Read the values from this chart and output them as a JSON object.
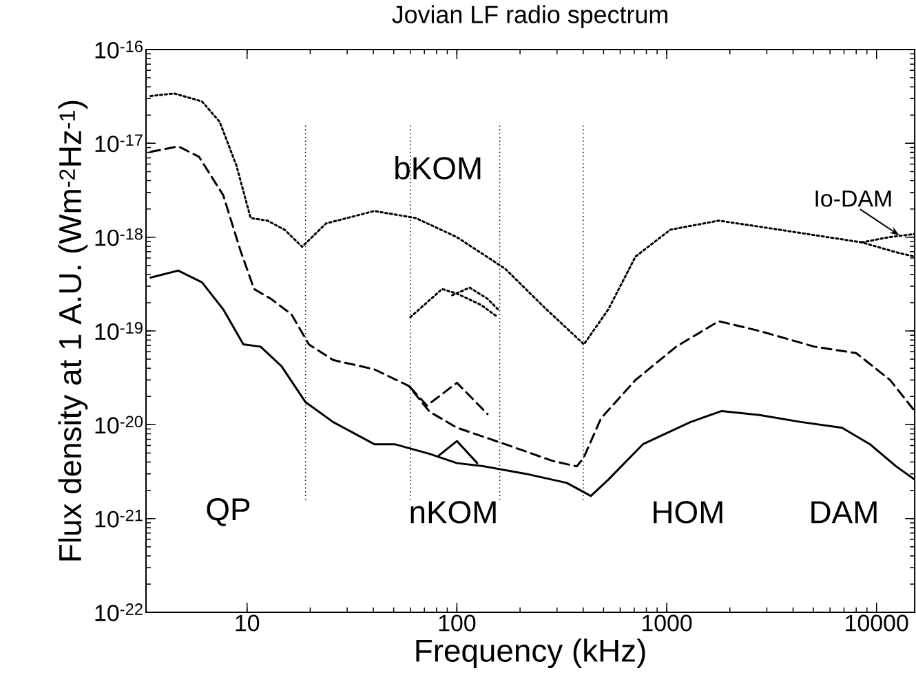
{
  "chart_data": {
    "type": "line",
    "title": "Jovian LF radio spectrum",
    "xlabel": "Frequency  (kHz)",
    "ylabel": "Flux density at 1 A.U. (Wm$^{-2}$Hz$^{-1}$)",
    "log": "xy",
    "xlim": [
      3.3,
      15200
    ],
    "ylim": [
      1e-22,
      1e-16
    ],
    "xticks": [
      10,
      100,
      1000,
      10000
    ],
    "yticks": [
      {
        "value": 1e-22,
        "label": "10$^{-22}$"
      },
      {
        "value": 1e-21,
        "label": "10$^{-21}$"
      },
      {
        "value": 1e-20,
        "label": "10$^{-20}$"
      },
      {
        "value": 1e-19,
        "label": "10$^{-19}$"
      },
      {
        "value": 1e-18,
        "label": "10$^{-18}$"
      },
      {
        "value": 1e-17,
        "label": "10$^{-17}$"
      },
      {
        "value": 1e-16,
        "label": "10$^{-16}$"
      }
    ],
    "series": [
      {
        "color": "#000000",
        "line_style": "dotted",
        "x": [
          3.47,
          4.5,
          6.1,
          7.4,
          8.9,
          10.4,
          12.5,
          15.1,
          18.3,
          23.8,
          40.4,
          63.6,
          100,
          170,
          267,
          403,
          527,
          710,
          1040,
          1770,
          3210,
          5850,
          8500,
          12400,
          15200
        ],
        "values": [
          3.2e-17,
          3.4e-17,
          2.8e-17,
          1.7e-17,
          5.8e-18,
          1.6e-18,
          1.5e-18,
          1.2e-18,
          7.9e-19,
          1.4e-18,
          1.9e-18,
          1.6e-18,
          1e-18,
          4.6e-19,
          1.7e-19,
          7.2e-20,
          1.7e-19,
          6.2e-19,
          1.2e-18,
          1.5e-18,
          1.23e-18,
          1e-18,
          8.8e-19,
          6.9e-19,
          6.2e-19
        ]
      },
      {
        "color": "#000000",
        "line_style": "dotted",
        "x": [
          8500,
          11500,
          15200
        ],
        "values": [
          8.8e-19,
          1e-18,
          1.08e-18
        ]
      },
      {
        "color": "#000000",
        "line_style": "dotted",
        "x": [
          60,
          85,
          100,
          130,
          157
        ],
        "values": [
          1.4e-19,
          2.8e-19,
          2.5e-19,
          1.9e-19,
          1.4e-19
        ]
      },
      {
        "color": "#000000",
        "line_style": "dotted",
        "x": [
          95,
          115,
          140,
          157
        ],
        "values": [
          2.4e-19,
          2.9e-19,
          2.2e-19,
          1.7e-19
        ]
      },
      {
        "color": "#000000",
        "line_style": "dashed",
        "x": [
          3.47,
          4.7,
          5.9,
          7.7,
          9.3,
          10.8,
          13.0,
          16.3,
          19.7,
          25.7,
          40.4,
          58.9,
          74,
          100,
          170,
          287,
          373,
          403,
          486,
          710,
          1110,
          1770,
          2770,
          5050,
          8000,
          11600,
          15200
        ],
        "values": [
          8.1e-18,
          9.3e-18,
          7.2e-18,
          2.8e-18,
          7.2e-19,
          2.8e-19,
          2.2e-19,
          1.5e-19,
          7.2e-20,
          4.9e-20,
          3.9e-20,
          2.6e-20,
          1.38e-20,
          9.3e-21,
          6.2e-21,
          4.1e-21,
          3.6e-21,
          4.5e-21,
          1.17e-20,
          3e-20,
          6.8e-20,
          1.27e-19,
          1e-19,
          6.8e-20,
          5.8e-20,
          3e-20,
          1.4e-20
        ]
      },
      {
        "color": "#000000",
        "line_style": "dashed",
        "x": [
          60,
          72,
          100,
          140
        ],
        "values": [
          2.5e-20,
          1.6e-20,
          2.8e-20,
          1.3e-20
        ]
      },
      {
        "color": "#000000",
        "line_style": "solid",
        "x": [
          3.47,
          4.7,
          6.1,
          7.7,
          9.6,
          11.6,
          14.6,
          19.0,
          25.7,
          40.4,
          50.5,
          74,
          100,
          135,
          213,
          334,
          435,
          527,
          770,
          1300,
          1830,
          2770,
          4360,
          6850,
          9300,
          12400,
          15200
        ],
        "values": [
          3.7e-19,
          4.4e-19,
          3.3e-19,
          1.7e-19,
          7.2e-20,
          6.8e-20,
          4.2e-20,
          1.74e-20,
          1.07e-20,
          6.2e-21,
          6.2e-21,
          4.9e-21,
          3.9e-21,
          3.6e-21,
          3e-21,
          2.4e-21,
          1.74e-21,
          2.6e-21,
          6.2e-21,
          1.07e-20,
          1.4e-20,
          1.27e-20,
          1.07e-20,
          9.3e-21,
          6.2e-21,
          3.6e-21,
          2.6e-21
        ]
      },
      {
        "color": "#000000",
        "line_style": "solid",
        "x": [
          82,
          100,
          125
        ],
        "values": [
          4.7e-21,
          6.7e-21,
          3.9e-21
        ]
      }
    ],
    "ref_lines": [
      {
        "axis": "x",
        "value": 19,
        "line_style": "dotted"
      },
      {
        "axis": "x",
        "value": 60,
        "line_style": "dotted"
      },
      {
        "axis": "x",
        "value": 160,
        "line_style": "dotted"
      },
      {
        "axis": "x",
        "value": 400,
        "line_style": "dotted"
      }
    ],
    "annotations": [
      "QP",
      "bKOM",
      "nKOM",
      "HOM",
      "DAM",
      "Io-DAM"
    ]
  }
}
